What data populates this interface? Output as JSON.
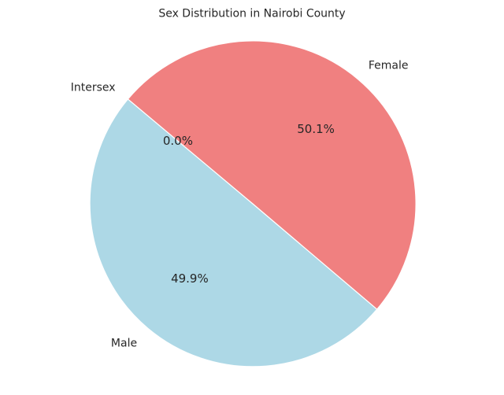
{
  "chart_data": {
    "type": "pie",
    "title": "Sex Distribution in Nairobi County",
    "categories": [
      "Male",
      "Female",
      "Intersex"
    ],
    "values": [
      49.9,
      50.1,
      0.0
    ],
    "value_labels": [
      "49.9%",
      "50.1%",
      "0.0%"
    ],
    "colors": [
      "#add8e6",
      "#f08080",
      "#90ee90"
    ],
    "start_angle_deg": 140,
    "legend": "none"
  }
}
